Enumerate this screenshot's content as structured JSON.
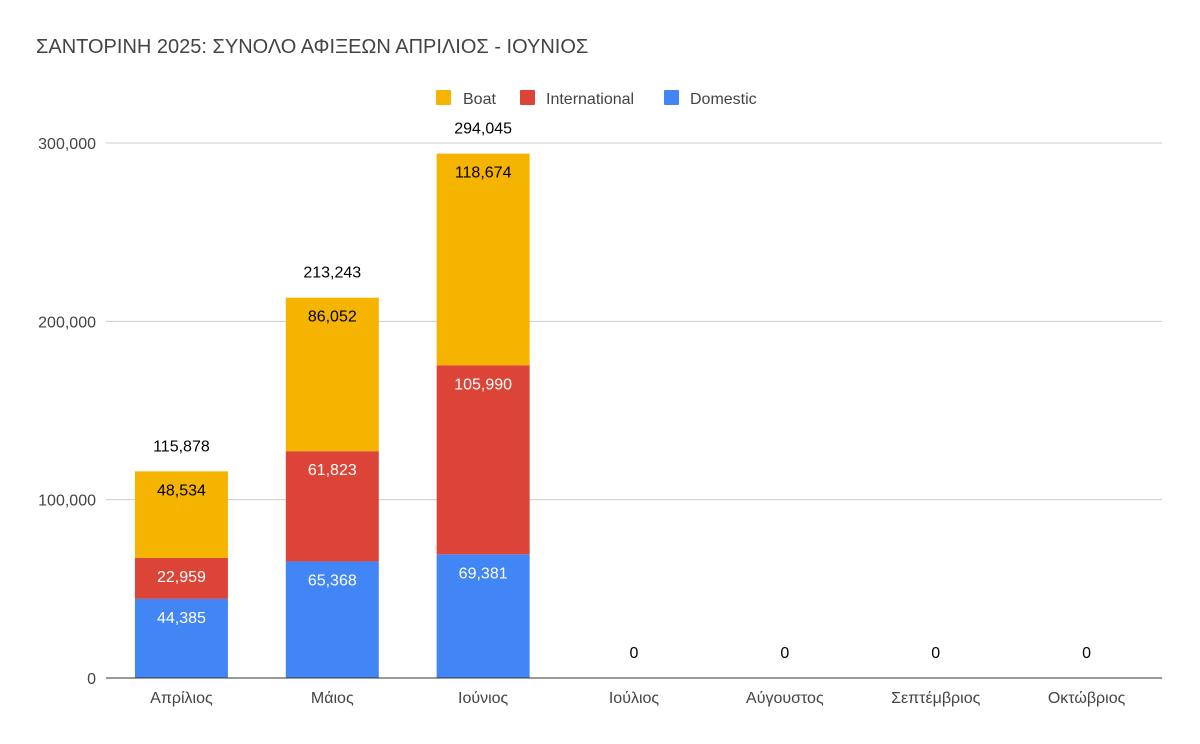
{
  "chart_data": {
    "type": "bar",
    "stacked": true,
    "title": "ΣΑΝΤΟΡΙΝΗ 2025: ΣΥΝΟΛΟ ΑΦΙΞΕΩΝ ΑΠΡΙΛΙΟΣ - ΙΟΥΝΙΟΣ",
    "categories": [
      "Απρίλιος",
      "Μάιος",
      "Ιούνιος",
      "Ιούλιος",
      "Αύγουστος",
      "Σεπτέμβριος",
      "Οκτώβριος"
    ],
    "series": [
      {
        "name": "Domestic",
        "color": "#4285f4",
        "label_color": "#ffffff",
        "values": [
          44385,
          65368,
          69381,
          0,
          0,
          0,
          0
        ],
        "labels": [
          "44,385",
          "65,368",
          "69,381",
          "",
          "",
          "",
          ""
        ]
      },
      {
        "name": "International",
        "color": "#db4437",
        "label_color": "#ffffff",
        "values": [
          22959,
          61823,
          105990,
          0,
          0,
          0,
          0
        ],
        "labels": [
          "22,959",
          "61,823",
          "105,990",
          "",
          "",
          "",
          ""
        ]
      },
      {
        "name": "Boat",
        "color": "#f4b400",
        "label_color": "#000000",
        "values": [
          48534,
          86052,
          118674,
          0,
          0,
          0,
          0
        ],
        "labels": [
          "48,534",
          "86,052",
          "118,674",
          "",
          "",
          "",
          ""
        ]
      }
    ],
    "totals": [
      115878,
      213243,
      294045,
      0,
      0,
      0,
      0
    ],
    "total_labels": [
      "115,878",
      "213,243",
      "294,045",
      "0",
      "0",
      "0",
      "0"
    ],
    "legend_order": [
      "Boat",
      "International",
      "Domestic"
    ],
    "legend_position": "top-center",
    "ylim": [
      0,
      300000
    ],
    "yticks": [
      0,
      100000,
      200000,
      300000
    ],
    "ytick_labels": [
      "0",
      "100,000",
      "200,000",
      "300,000"
    ],
    "xlabel": "",
    "ylabel": "",
    "grid": true
  }
}
